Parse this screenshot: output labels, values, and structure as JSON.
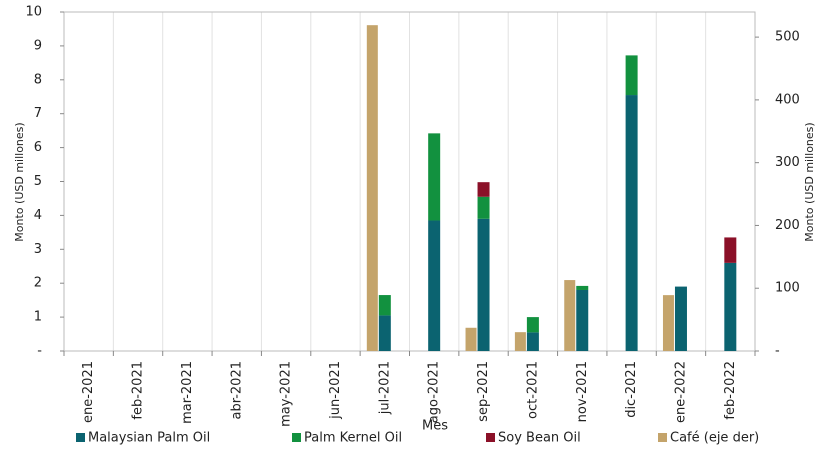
{
  "chart_data": {
    "type": "bar",
    "x_label": "Mes",
    "y_label": "Monto (USD millones)",
    "y2_label": "Monto (USD millones)",
    "categories": [
      "ene-2021",
      "feb-2021",
      "mar-2021",
      "abr-2021",
      "may-2021",
      "jun-2021",
      "jul-2021",
      "ago-2021",
      "sep-2021",
      "oct-2021",
      "nov-2021",
      "dic-2021",
      "ene-2022",
      "feb-2022"
    ],
    "ylim": [
      0,
      10
    ],
    "yticks": [
      {
        "value": 0,
        "label": "-"
      },
      1,
      2,
      3,
      4,
      5,
      6,
      7,
      8,
      9,
      10
    ],
    "y2lim": [
      0,
      540
    ],
    "y2ticks": [
      {
        "value": 0,
        "label": "-"
      },
      100,
      200,
      300,
      400,
      500
    ],
    "grid": true,
    "series": [
      {
        "name": "Malaysian Palm Oil",
        "color": "#0b6370",
        "stack": true,
        "values": [
          null,
          null,
          null,
          null,
          null,
          null,
          1.05,
          3.85,
          3.9,
          0.55,
          1.8,
          7.55,
          1.9,
          2.6
        ]
      },
      {
        "name": "Palm Kernel Oil",
        "color": "#12913f",
        "stack": true,
        "values": [
          null,
          null,
          null,
          null,
          null,
          null,
          0.6,
          2.57,
          0.65,
          0.45,
          0.12,
          1.17,
          null,
          null
        ]
      },
      {
        "name": "Soy Bean Oil",
        "color": "#8b1028",
        "stack": true,
        "values": [
          null,
          null,
          null,
          null,
          null,
          null,
          null,
          null,
          0.43,
          null,
          null,
          null,
          null,
          0.75
        ]
      },
      {
        "name": "Café (eje der)",
        "color": "#c4a46b",
        "axis": "y2",
        "values": [
          null,
          null,
          null,
          null,
          null,
          null,
          519,
          null,
          37,
          30,
          113,
          null,
          89,
          null
        ]
      }
    ]
  }
}
